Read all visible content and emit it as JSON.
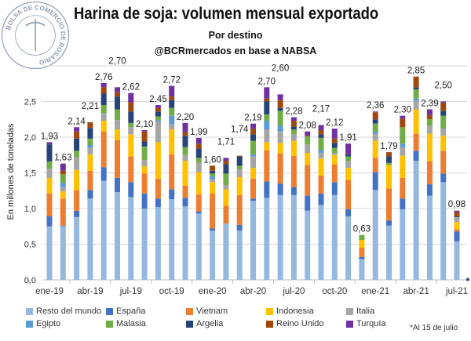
{
  "logo_text": "BOLSA DE COMERCIO DE ROSARIO",
  "chart_data": {
    "type": "bar",
    "stacked": true,
    "title": "Harina de soja: volumen mensual exportado",
    "subtitle": "Por destino",
    "source": "@BCRmercados en base a NABSA",
    "ylabel": "En millones de toneladas",
    "xlabel": "",
    "ylim": [
      0,
      3.0
    ],
    "yticks": [
      "0,0",
      "0,5",
      "1,0",
      "1,5",
      "2,0",
      "2,5"
    ],
    "grid": true,
    "legend_position": "bottom",
    "footnote": "*Al 15 de julio",
    "footnote_marker": "*",
    "categories": [
      "ene-19",
      "feb-19",
      "mar-19",
      "abr-19",
      "may-19",
      "jun-19",
      "jul-19",
      "ago-19",
      "sep-19",
      "oct-19",
      "nov-19",
      "dic-19",
      "ene-20",
      "feb-20",
      "mar-20",
      "abr-20",
      "may-20",
      "jun-20",
      "jul-20",
      "ago-20",
      "sep-20",
      "oct-20",
      "nov-20",
      "dic-20",
      "ene-21",
      "feb-21",
      "mar-21",
      "abr-21",
      "may-21",
      "jun-21",
      "jul-21"
    ],
    "xtick_labels": [
      "ene-19",
      "abr-19",
      "jul-19",
      "oct-19",
      "ene-20",
      "abr-20",
      "jul-20",
      "oct-20",
      "ene-21",
      "abr-21",
      "jul-21"
    ],
    "totals": [
      "1,93",
      "1,63",
      "2,14",
      "2,21",
      "2,76",
      "2,70",
      "2,62",
      "2,10",
      "2,45",
      "2,72",
      "2,20",
      "1,99",
      "1,60",
      "1,71",
      "1,74",
      "2,19",
      "2,70",
      "2,60",
      "2,28",
      "2,08",
      "2,17",
      "2,12",
      "1,91",
      "0,63",
      "2,36",
      "1,79",
      "2,30",
      "2,85",
      "2,39",
      "2,50",
      "0,98"
    ],
    "series": [
      {
        "name": "Resto del mundo",
        "color": "#95b8e0",
        "values": [
          0.75,
          0.75,
          0.88,
          1.14,
          1.39,
          1.23,
          1.16,
          1.0,
          1.02,
          1.13,
          1.03,
          0.93,
          0.69,
          0.79,
          0.69,
          1.11,
          1.15,
          1.19,
          1.19,
          0.97,
          1.05,
          1.19,
          0.89,
          0.29,
          1.26,
          0.76,
          0.99,
          1.67,
          1.18,
          1.37,
          0.54
        ]
      },
      {
        "name": "España",
        "color": "#4472c4",
        "values": [
          0.14,
          0.01,
          0.09,
          0.12,
          0.19,
          0.2,
          0.21,
          0.21,
          0.12,
          0.14,
          0.12,
          0.03,
          0.03,
          0.0,
          0.08,
          0.03,
          0.23,
          0.16,
          0.11,
          0.21,
          0.16,
          0.18,
          0.1,
          0.03,
          0.25,
          0.07,
          0.15,
          0.14,
          0.16,
          0.12,
          0.14
        ]
      },
      {
        "name": "Vietnam",
        "color": "#ed7d31",
        "values": [
          0.32,
          0.38,
          0.29,
          0.27,
          0.5,
          0.53,
          0.36,
          0.28,
          0.28,
          0.49,
          0.17,
          0.24,
          0.49,
          0.25,
          0.42,
          0.28,
          0.44,
          0.42,
          0.44,
          0.43,
          0.25,
          0.25,
          0.41,
          0.13,
          0.2,
          0.45,
          0.29,
          0.24,
          0.32,
          0.32,
          0.03
        ]
      },
      {
        "name": "Indonesia",
        "color": "#ffc000",
        "values": [
          0.22,
          0.1,
          0.28,
          0.23,
          0.15,
          0.15,
          0.31,
          0.1,
          0.51,
          0.35,
          0.35,
          0.31,
          0.16,
          0.23,
          0.25,
          0.15,
          0.11,
          0.15,
          0.21,
          0.17,
          0.24,
          0.13,
          0.17,
          0.11,
          0.24,
          0.33,
          0.31,
          0.34,
          0.39,
          0.21,
          0.1
        ]
      },
      {
        "name": "Italia",
        "color": "#a5a5a5",
        "values": [
          0.13,
          0.06,
          0.18,
          0.09,
          0.11,
          0.13,
          0.1,
          0.09,
          0.29,
          0.07,
          0.08,
          0.13,
          0.04,
          0.06,
          0.11,
          0.16,
          0.18,
          0.16,
          0.09,
          0.12,
          0.08,
          0.03,
          0.1,
          0.0,
          0.1,
          0.0,
          0.12,
          0.12,
          0.11,
          0.1,
          0.07
        ]
      },
      {
        "name": "Egipto",
        "color": "#5b9bd5",
        "values": [
          0.0,
          0.06,
          0.0,
          0.04,
          0.0,
          0.0,
          0.0,
          0.0,
          0.02,
          0.12,
          0.0,
          0.0,
          0.04,
          0.0,
          0.0,
          0.03,
          0.12,
          0.08,
          0.0,
          0.0,
          0.04,
          0.0,
          0.0,
          0.0,
          0.03,
          0.0,
          0.05,
          0.03,
          0.0,
          0.0,
          0.0
        ]
      },
      {
        "name": "Malasia",
        "color": "#70ad47",
        "values": [
          0.1,
          0.12,
          0.09,
          0.09,
          0.11,
          0.15,
          0.06,
          0.19,
          0.05,
          0.11,
          0.11,
          0.07,
          0.04,
          0.16,
          0.05,
          0.19,
          0.09,
          0.21,
          0.07,
          0.11,
          0.17,
          0.07,
          0.06,
          0.07,
          0.11,
          0.03,
          0.23,
          0.13,
          0.09,
          0.18,
          0.0
        ]
      },
      {
        "name": "Argelia",
        "color": "#264478",
        "values": [
          0.24,
          0.0,
          0.17,
          0.15,
          0.16,
          0.18,
          0.16,
          0.07,
          0.07,
          0.11,
          0.16,
          0.13,
          0.04,
          0.13,
          0.13,
          0.09,
          0.18,
          0.04,
          0.04,
          0.0,
          0.05,
          0.07,
          0.03,
          0.0,
          0.06,
          0.09,
          0.0,
          0.03,
          0.0,
          0.07,
          0.01
        ]
      },
      {
        "name": "Reino Unido",
        "color": "#9e480e",
        "values": [
          0.0,
          0.05,
          0.1,
          0.08,
          0.09,
          0.06,
          0.13,
          0.14,
          0.05,
          0.05,
          0.05,
          0.07,
          0.07,
          0.05,
          0.01,
          0.08,
          0.04,
          0.11,
          0.08,
          0.01,
          0.06,
          0.06,
          0.0,
          0.0,
          0.1,
          0.06,
          0.12,
          0.15,
          0.06,
          0.11,
          0.06
        ]
      },
      {
        "name": "Turquía",
        "color": "#7030a0",
        "values": [
          0.03,
          0.1,
          0.06,
          0.0,
          0.06,
          0.07,
          0.13,
          0.02,
          0.04,
          0.15,
          0.13,
          0.08,
          0.0,
          0.04,
          0.0,
          0.07,
          0.16,
          0.08,
          0.05,
          0.06,
          0.07,
          0.14,
          0.15,
          0.0,
          0.01,
          0.0,
          0.04,
          0.0,
          0.08,
          0.02,
          0.02
        ]
      }
    ]
  }
}
